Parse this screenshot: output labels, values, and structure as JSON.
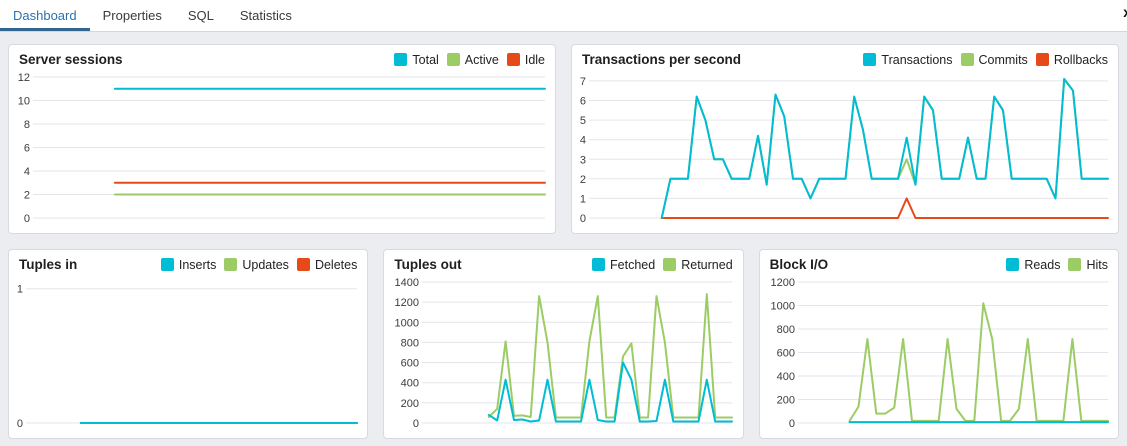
{
  "tabs": [
    {
      "label": "Dashboard",
      "active": true
    },
    {
      "label": "Properties",
      "active": false
    },
    {
      "label": "SQL",
      "active": false
    },
    {
      "label": "Statistics",
      "active": false
    }
  ],
  "close_button_label": "x",
  "colors": {
    "active_tab_text": "#2f71ae",
    "active_tab_underline": "#326690",
    "series_cyan": "#00BCD4",
    "series_green": "#9CCC65",
    "series_red": "#E64A19",
    "gridline": "#e3e5eb",
    "panel_border": "#d7dae0",
    "page_background": "#ebedf1"
  },
  "chart_data": [
    {
      "id": "server-sessions",
      "type": "line",
      "title": "Server sessions",
      "xlabel": "",
      "ylabel": "",
      "ylim": [
        0,
        12
      ],
      "yticks": [
        0,
        2,
        4,
        6,
        8,
        10,
        12
      ],
      "grid": true,
      "legend_position": "top-right",
      "x_start_frac": 0.15,
      "series": [
        {
          "name": "Total",
          "color": "#00BCD4",
          "values": [
            11,
            11
          ]
        },
        {
          "name": "Active",
          "color": "#9CCC65",
          "values": [
            2,
            2
          ]
        },
        {
          "name": "Idle",
          "color": "#E64A19",
          "values": [
            3,
            3
          ]
        }
      ]
    },
    {
      "id": "transactions-per-second",
      "type": "line",
      "title": "Transactions per second",
      "xlabel": "",
      "ylabel": "",
      "ylim": [
        0,
        7.2
      ],
      "yticks": [
        0,
        1,
        2,
        3,
        4,
        5,
        6,
        7
      ],
      "grid": true,
      "legend_position": "top-right",
      "x_start_frac": 0.13,
      "series": [
        {
          "name": "Transactions",
          "color": "#00BCD4",
          "values": [
            0,
            2,
            2,
            2,
            6.2,
            5,
            3,
            3,
            2,
            2,
            2,
            4.2,
            1.7,
            6.3,
            5.2,
            2,
            2,
            1,
            2,
            2,
            2,
            2,
            6.2,
            4.5,
            2,
            2,
            2,
            2,
            4.1,
            1.7,
            6.2,
            5.5,
            2,
            2,
            2,
            4.1,
            2,
            2,
            6.2,
            5.5,
            2,
            2,
            2,
            2,
            2,
            1,
            7.1,
            6.5,
            2,
            2,
            2,
            2
          ]
        },
        {
          "name": "Commits",
          "color": "#9CCC65",
          "values": [
            0,
            2,
            2,
            2,
            6.2,
            5,
            3,
            3,
            2,
            2,
            2,
            4.2,
            1.7,
            6.3,
            5.2,
            2,
            2,
            1,
            2,
            2,
            2,
            2,
            6.2,
            4.5,
            2,
            2,
            2,
            2,
            3,
            1.7,
            6.2,
            5.5,
            2,
            2,
            2,
            4.1,
            2,
            2,
            6.2,
            5.5,
            2,
            2,
            2,
            2,
            2,
            1,
            7.1,
            6.5,
            2,
            2,
            2,
            2
          ]
        },
        {
          "name": "Rollbacks",
          "color": "#E64A19",
          "values": [
            0,
            0,
            0,
            0,
            0,
            0,
            0,
            0,
            0,
            0,
            0,
            0,
            0,
            0,
            0,
            0,
            0,
            0,
            0,
            0,
            0,
            0,
            0,
            0,
            0,
            0,
            0,
            0,
            1,
            0,
            0,
            0,
            0,
            0,
            0,
            0,
            0,
            0,
            0,
            0,
            0,
            0,
            0,
            0,
            0,
            0,
            0,
            0,
            0,
            0,
            0,
            0
          ]
        }
      ]
    },
    {
      "id": "tuples-in",
      "type": "line",
      "title": "Tuples in",
      "xlabel": "",
      "ylabel": "",
      "ylim": [
        0,
        1.05
      ],
      "yticks": [
        0,
        1
      ],
      "grid": true,
      "legend_position": "top-right",
      "x_start_frac": 0.15,
      "series": [
        {
          "name": "Inserts",
          "color": "#00BCD4",
          "values": [
            0,
            0
          ]
        },
        {
          "name": "Updates",
          "color": "#9CCC65",
          "values": [
            0,
            0
          ]
        },
        {
          "name": "Deletes",
          "color": "#E64A19",
          "values": [
            0,
            0
          ]
        }
      ]
    },
    {
      "id": "tuples-out",
      "type": "line",
      "title": "Tuples out",
      "xlabel": "",
      "ylabel": "",
      "ylim": [
        0,
        1400
      ],
      "yticks": [
        0,
        200,
        400,
        600,
        800,
        1000,
        1200,
        1400
      ],
      "grid": true,
      "legend_position": "top-right",
      "x_start_frac": 0.2,
      "series": [
        {
          "name": "Fetched",
          "color": "#00BCD4",
          "values": [
            80,
            25,
            430,
            30,
            35,
            15,
            25,
            430,
            15,
            15,
            15,
            15,
            430,
            30,
            15,
            15,
            600,
            430,
            15,
            15,
            20,
            430,
            15,
            15,
            15,
            15,
            430,
            15,
            15,
            15
          ]
        },
        {
          "name": "Returned",
          "color": "#9CCC65",
          "values": [
            60,
            140,
            810,
            70,
            75,
            60,
            1260,
            800,
            55,
            55,
            55,
            55,
            810,
            1260,
            55,
            55,
            660,
            790,
            55,
            55,
            1260,
            800,
            55,
            55,
            55,
            55,
            1280,
            55,
            55,
            55
          ]
        }
      ]
    },
    {
      "id": "block-io",
      "type": "line",
      "title": "Block I/O",
      "xlabel": "",
      "ylabel": "",
      "ylim": [
        0,
        1200
      ],
      "yticks": [
        0,
        200,
        400,
        600,
        800,
        1000,
        1200
      ],
      "grid": true,
      "legend_position": "top-right",
      "x_start_frac": 0.15,
      "series": [
        {
          "name": "Reads",
          "color": "#00BCD4",
          "values": [
            8,
            8,
            8,
            8,
            8,
            8,
            8,
            8,
            8,
            8,
            8,
            8,
            8,
            8,
            8,
            8,
            8,
            8,
            8,
            8,
            8,
            8,
            8,
            8,
            8,
            8,
            8,
            8,
            8,
            8
          ]
        },
        {
          "name": "Hits",
          "color": "#9CCC65",
          "values": [
            18,
            140,
            715,
            80,
            80,
            130,
            715,
            18,
            18,
            18,
            18,
            715,
            120,
            18,
            18,
            1020,
            715,
            18,
            18,
            120,
            715,
            18,
            18,
            18,
            18,
            715,
            18,
            18,
            18,
            18
          ]
        }
      ]
    }
  ]
}
